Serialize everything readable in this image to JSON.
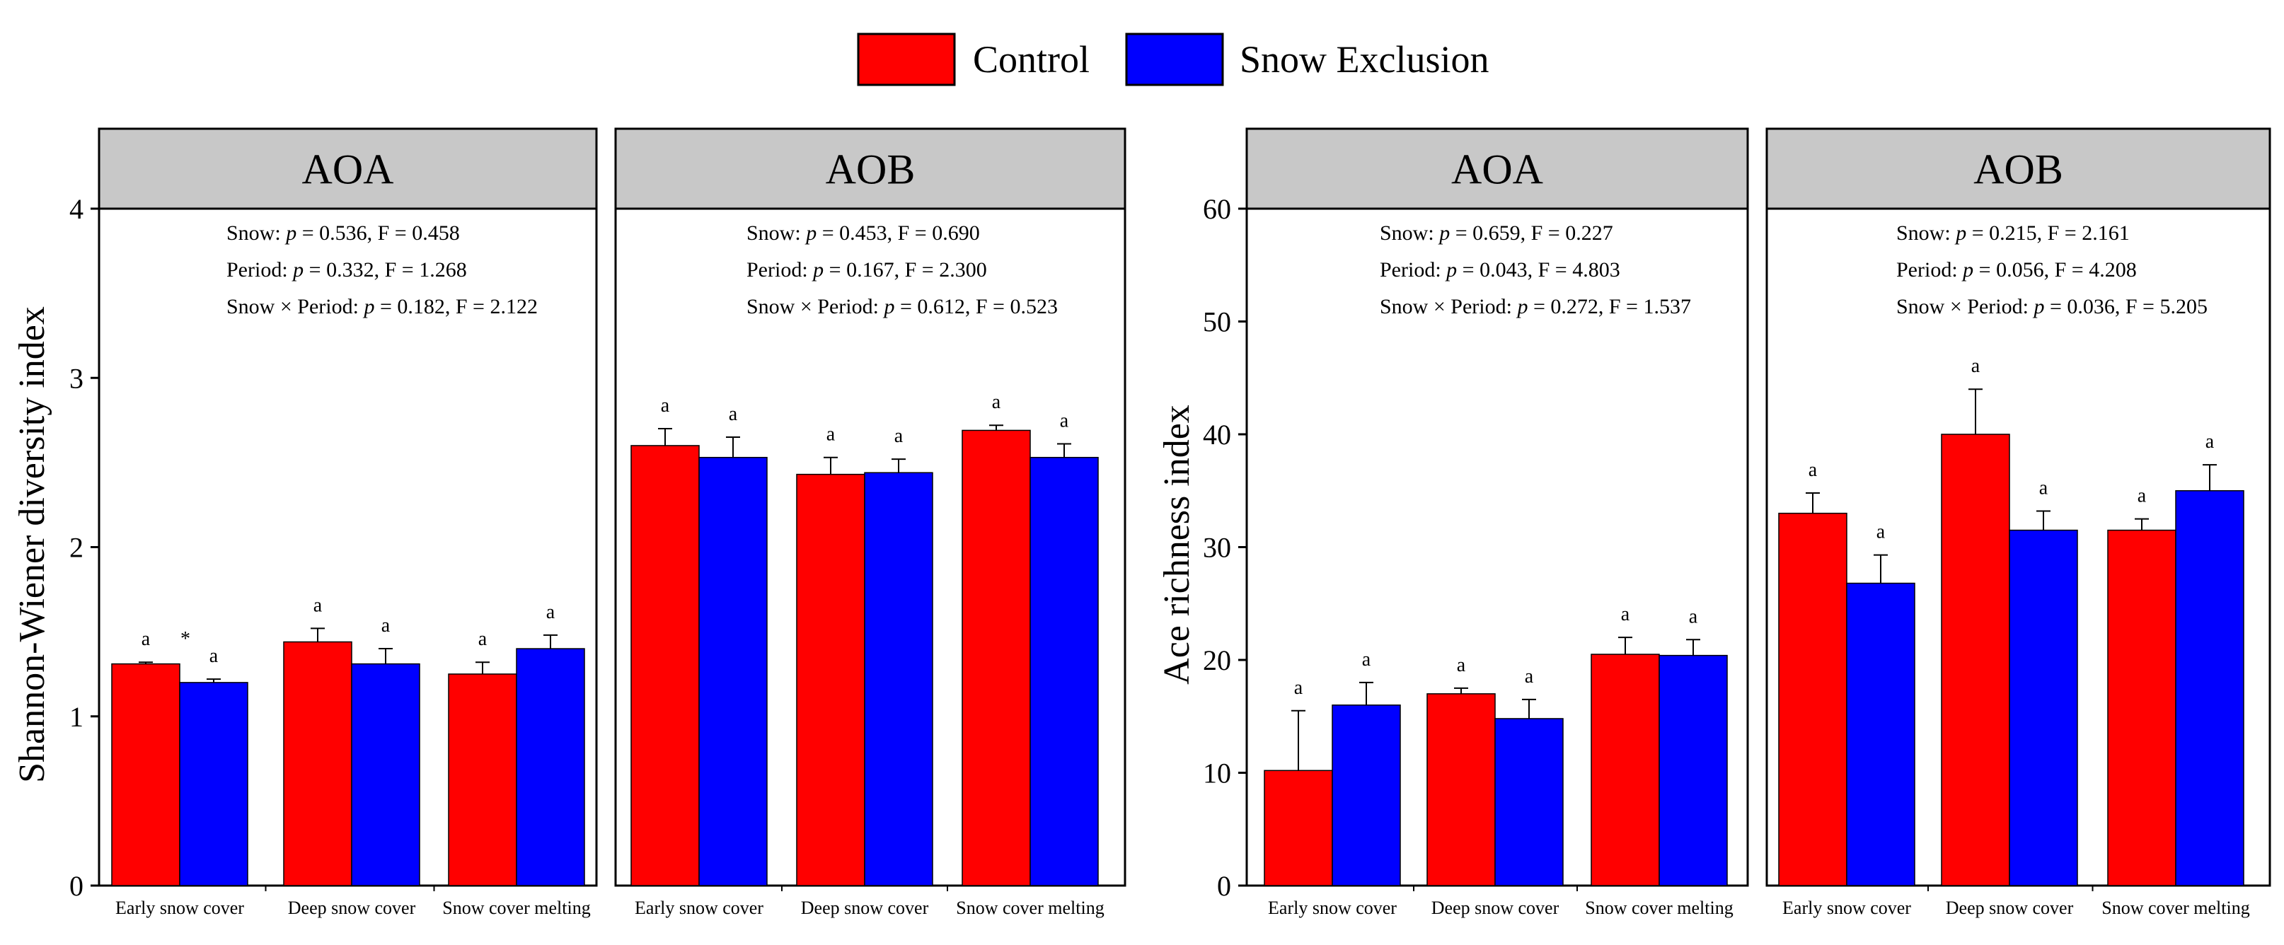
{
  "legend": [
    {
      "label": "Control",
      "color": "#ff0000"
    },
    {
      "label": "Snow  Exclusion",
      "color": "#0000ff"
    }
  ],
  "colors": {
    "control": "#ff0000",
    "snow_exclusion": "#0000ff",
    "header_fill": "#c8c8c8"
  },
  "chart_data": [
    {
      "type": "bar",
      "title": "AOA",
      "ylabel": "Shannon-Wiener diversity index",
      "ylim": [
        0,
        4
      ],
      "yticks": [
        0,
        1,
        2,
        3,
        4
      ],
      "categories": [
        "Early snow cover",
        "Deep snow cover",
        "Snow cover melting"
      ],
      "series": [
        {
          "name": "Control",
          "values": [
            1.31,
            1.44,
            1.25
          ],
          "errors": [
            0.01,
            0.08,
            0.07
          ],
          "letters": [
            "a",
            "a",
            "a"
          ]
        },
        {
          "name": "Snow  Exclusion",
          "values": [
            1.2,
            1.31,
            1.4
          ],
          "errors": [
            0.02,
            0.09,
            0.08
          ],
          "letters": [
            "a",
            "a",
            "a"
          ]
        }
      ],
      "annotations": [
        {
          "text": "*",
          "category": 0,
          "series": 1
        }
      ],
      "stats": [
        {
          "prefix": "Snow: ",
          "p_label": "p",
          "rest": " = 0.536, F = 0.458"
        },
        {
          "prefix": "Period: ",
          "p_label": "p",
          "rest": " = 0.332, F = 1.268"
        },
        {
          "prefix": "Snow × Period: ",
          "p_label": "p",
          "rest": " = 0.182, F = 2.122"
        }
      ]
    },
    {
      "type": "bar",
      "title": "AOB",
      "ylabel": "",
      "ylim": [
        0,
        4
      ],
      "yticks": [],
      "categories": [
        "Early snow cover",
        "Deep snow cover",
        "Snow cover melting"
      ],
      "series": [
        {
          "name": "Control",
          "values": [
            2.6,
            2.43,
            2.69
          ],
          "errors": [
            0.1,
            0.1,
            0.03
          ],
          "letters": [
            "a",
            "a",
            "a"
          ]
        },
        {
          "name": "Snow  Exclusion",
          "values": [
            2.53,
            2.44,
            2.53
          ],
          "errors": [
            0.12,
            0.08,
            0.08
          ],
          "letters": [
            "a",
            "a",
            "a"
          ]
        }
      ],
      "annotations": [],
      "stats": [
        {
          "prefix": "Snow: ",
          "p_label": "p",
          "rest": " = 0.453, F = 0.690"
        },
        {
          "prefix": "Period: ",
          "p_label": "p",
          "rest": " = 0.167, F = 2.300"
        },
        {
          "prefix": "Snow × Period: ",
          "p_label": "p",
          "rest": " = 0.612, F = 0.523"
        }
      ]
    },
    {
      "type": "bar",
      "title": "AOA",
      "ylabel": "Ace richness index",
      "ylim": [
        0,
        60
      ],
      "yticks": [
        0,
        10,
        20,
        30,
        40,
        50,
        60
      ],
      "categories": [
        "Early snow cover",
        "Deep snow cover",
        "Snow cover melting"
      ],
      "series": [
        {
          "name": "Control",
          "values": [
            10.2,
            17.0,
            20.5
          ],
          "errors": [
            5.3,
            0.5,
            1.5
          ],
          "letters": [
            "a",
            "a",
            "a"
          ]
        },
        {
          "name": "Snow  Exclusion",
          "values": [
            16.0,
            14.8,
            20.4
          ],
          "errors": [
            2.0,
            1.7,
            1.4
          ],
          "letters": [
            "a",
            "a",
            "a"
          ]
        }
      ],
      "annotations": [],
      "stats": [
        {
          "prefix": "Snow: ",
          "p_label": "p",
          "rest": " = 0.659, F = 0.227"
        },
        {
          "prefix": "Period: ",
          "p_label": "p",
          "rest": " = 0.043, F = 4.803"
        },
        {
          "prefix": "Snow × Period: ",
          "p_label": "p",
          "rest": " = 0.272, F = 1.537"
        }
      ]
    },
    {
      "type": "bar",
      "title": "AOB",
      "ylabel": "",
      "ylim": [
        0,
        60
      ],
      "yticks": [],
      "categories": [
        "Early snow cover",
        "Deep snow cover",
        "Snow cover melting"
      ],
      "series": [
        {
          "name": "Control",
          "values": [
            33.0,
            40.0,
            31.5
          ],
          "errors": [
            1.8,
            4.0,
            1.0
          ],
          "letters": [
            "a",
            "a",
            "a"
          ]
        },
        {
          "name": "Snow  Exclusion",
          "values": [
            26.8,
            31.5,
            35.0
          ],
          "errors": [
            2.5,
            1.7,
            2.3
          ],
          "letters": [
            "a",
            "a",
            "a"
          ]
        }
      ],
      "annotations": [],
      "stats": [
        {
          "prefix": "Snow: ",
          "p_label": "p",
          "rest": " = 0.215, F = 2.161"
        },
        {
          "prefix": "Period: ",
          "p_label": "p",
          "rest": " = 0.056, F = 4.208"
        },
        {
          "prefix": "Snow × Period: ",
          "p_label": "p",
          "rest": " = 0.036, F = 5.205"
        }
      ]
    }
  ]
}
